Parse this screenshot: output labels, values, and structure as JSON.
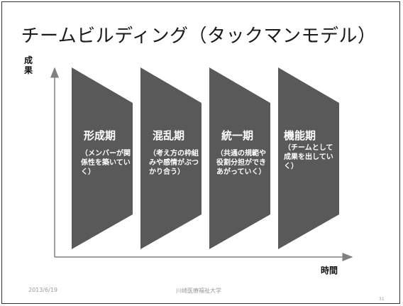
{
  "title": "チームビルディング（タックマンモデル）",
  "axes": {
    "y_label": "成果",
    "x_label": "時間"
  },
  "stages": [
    {
      "name": "形成期",
      "description": "（メンバーが関係性を築いていく）"
    },
    {
      "name": "混乱期",
      "description": "（考え方の枠組みや感情がぶつかり合う）"
    },
    {
      "name": "統一期",
      "description": "（共通の規範や役割分担ができあがっていく）"
    },
    {
      "name": "機能期",
      "description": "（チームとして成果を出していく）"
    }
  ],
  "colors": {
    "shape_fill": "#595959",
    "axis": "#808080"
  },
  "footer": {
    "date": "2013/6/19",
    "organization": "川崎医療福祉大学",
    "page_number": "31"
  }
}
